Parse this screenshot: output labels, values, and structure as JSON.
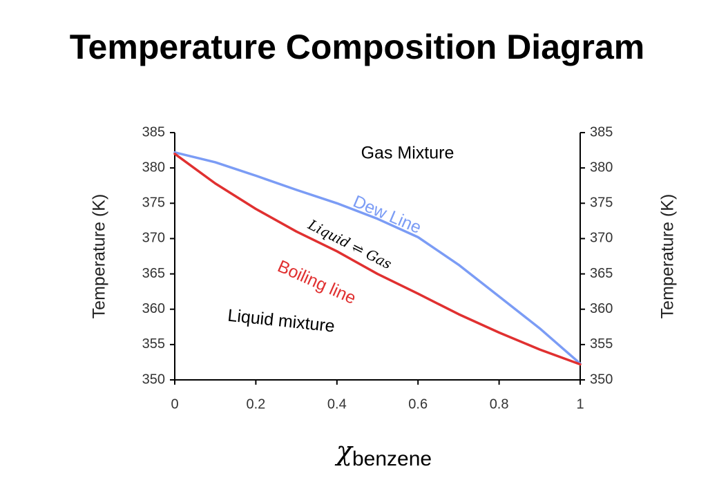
{
  "chart_data": {
    "type": "line",
    "title": "Temperature Composition Diagram",
    "xlabel": {
      "symbol": "χ",
      "subscript": "benzene"
    },
    "ylabel": "Temperature (K)",
    "y2label": "Temperature (K)",
    "x": [
      0,
      0.1,
      0.2,
      0.3,
      0.4,
      0.5,
      0.6,
      0.7,
      0.8,
      0.9,
      1
    ],
    "series": [
      {
        "name": "Dew Line",
        "color": "#7b9cf5",
        "values": [
          382.2,
          380.8,
          378.9,
          376.9,
          375.0,
          372.8,
          370.2,
          366.3,
          361.8,
          357.3,
          352.3
        ]
      },
      {
        "name": "Boiling line",
        "color": "#e03030",
        "values": [
          382.0,
          377.8,
          374.2,
          371.0,
          368.2,
          365.0,
          362.2,
          359.3,
          356.7,
          354.3,
          352.2
        ]
      }
    ],
    "annotations": [
      "Gas Mixture",
      "Liquid ⇌ Gas",
      "Liquid mixture"
    ],
    "xlim": [
      0,
      1
    ],
    "xticks": [
      0,
      0.2,
      0.4,
      0.6,
      0.8,
      1
    ],
    "ylim": [
      350,
      385
    ],
    "yticks": [
      350,
      355,
      360,
      365,
      370,
      375,
      380,
      385
    ],
    "y2lim": [
      350,
      385
    ],
    "y2ticks": [
      350,
      355,
      360,
      365,
      370,
      375,
      380,
      385
    ],
    "grid": false
  }
}
